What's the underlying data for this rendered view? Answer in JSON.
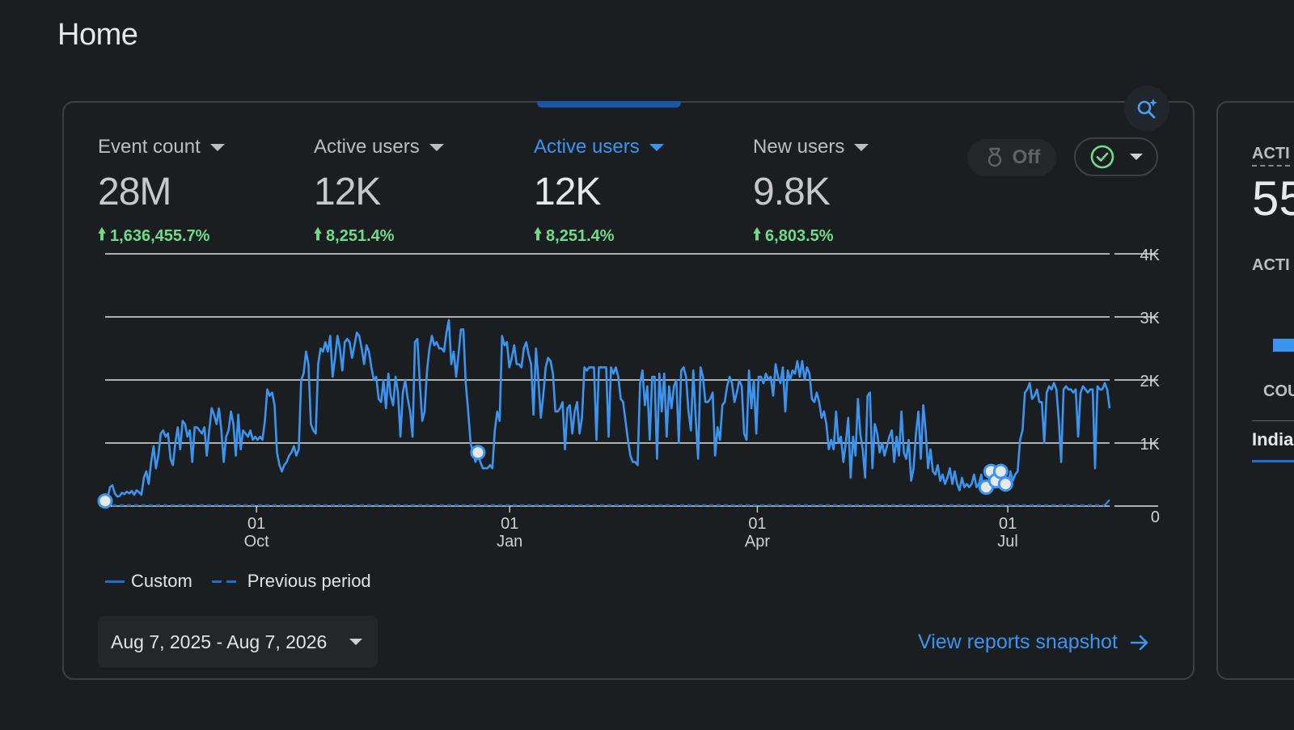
{
  "page": {
    "title": "Home"
  },
  "metrics": [
    {
      "label": "Event count",
      "value": "28M",
      "change": "1,636,455.7%"
    },
    {
      "label": "Active users",
      "value": "12K",
      "change": "8,251.4%"
    },
    {
      "label": "Active users",
      "value": "12K",
      "change": "8,251.4%",
      "selected": true
    },
    {
      "label": "New users",
      "value": "9.8K",
      "change": "6,803.5%"
    }
  ],
  "controls": {
    "off_label": "Off"
  },
  "chart_data": {
    "type": "line",
    "x_tick_labels": [
      {
        "day": "01",
        "month": "Oct"
      },
      {
        "day": "01",
        "month": "Jan"
      },
      {
        "day": "01",
        "month": "Apr"
      },
      {
        "day": "01",
        "month": "Jul"
      }
    ],
    "y_tick_labels": [
      "0",
      "1K",
      "2K",
      "3K",
      "4K"
    ],
    "ylim": [
      0,
      4000
    ],
    "x_range": [
      "2025-08-07",
      "2026-08-07"
    ],
    "legend_position": "bottom-left",
    "grid": true,
    "series": [
      {
        "name": "Custom",
        "style": "solid",
        "color": "#3b95f0",
        "values": [
          80,
          120,
          300,
          330,
          200,
          150,
          160,
          210,
          190,
          230,
          200,
          240,
          180,
          250,
          220,
          180,
          450,
          550,
          350,
          700,
          950,
          600,
          800,
          1150,
          1200,
          1100,
          1150,
          750,
          650,
          1000,
          1250,
          900,
          1350,
          1300,
          1100,
          1200,
          700,
          1250,
          1250,
          1200,
          1150,
          1250,
          800,
          1200,
          1550,
          1450,
          1300,
          1550,
          1200,
          700,
          1100,
          1200,
          1500,
          1300,
          800,
          1450,
          900,
          1200,
          1150,
          1100,
          1200,
          1050,
          1100,
          1050,
          1100,
          1050,
          1350,
          1850,
          1750,
          1800,
          1600,
          850,
          650,
          550,
          650,
          700,
          800,
          850,
          950,
          800,
          900,
          2000,
          2100,
          2450,
          2250,
          1300,
          1200,
          1150,
          2250,
          2500,
          2450,
          2600,
          2450,
          2700,
          2050,
          2350,
          2700,
          2500,
          2150,
          2600,
          2650,
          2600,
          2350,
          2550,
          2750,
          2700,
          2500,
          2250,
          2550,
          2450,
          2200,
          2000,
          2050,
          1700,
          1650,
          2000,
          1550,
          2100,
          1750,
          1600,
          2050,
          1800,
          1100,
          1800,
          2000,
          1700,
          1500,
          1100,
          2600,
          2650,
          1950,
          1350,
          1500,
          2150,
          2500,
          2700,
          2550,
          2600,
          2500,
          2500,
          2450,
          2750,
          2950,
          2250,
          2450,
          2050,
          2400,
          2800,
          2800,
          1950,
          1500,
          1000,
          850,
          700,
          850,
          700,
          600,
          600,
          600,
          650,
          600,
          1200,
          1500,
          1350,
          2700,
          2550,
          2600,
          2200,
          2350,
          2550,
          2250,
          2250,
          2200,
          2500,
          2600,
          2400,
          2250,
          1450,
          2500,
          2000,
          1400,
          1750,
          2200,
          2350,
          2300,
          2100,
          1500,
          1500,
          1550,
          1650,
          900,
          1550,
          1600,
          1150,
          1500,
          1650,
          1150,
          1400,
          2200,
          2150,
          2200,
          2200,
          2200,
          1050,
          2200,
          2200,
          2200,
          2200,
          1100,
          2200,
          2100,
          2200,
          2050,
          1700,
          1650,
          1350,
          1050,
          800,
          700,
          700,
          650,
          1950,
          2150,
          1600,
          1900,
          1050,
          2050,
          2050,
          750,
          2100,
          1500,
          2100,
          1100,
          1900,
          1550,
          1900,
          2000,
          1000,
          2150,
          2200,
          2050,
          1500,
          1200,
          2150,
          1400,
          750,
          2200,
          2050,
          1650,
          1650,
          1700,
          1800,
          800,
          1250,
          1050,
          1600,
          1650,
          1900,
          2050,
          1950,
          1650,
          1800,
          2000,
          1900,
          1150,
          1050,
          2150,
          1550,
          2000,
          1150,
          2050,
          2050,
          1950,
          2100,
          2000,
          2050,
          1750,
          2250,
          2050,
          1950,
          2200,
          1500,
          2150,
          2000,
          2150,
          2100,
          2300,
          2050,
          2300,
          2000,
          2200,
          2100,
          1700,
          1650,
          1800,
          1650,
          1400,
          1500,
          1300,
          900,
          1050,
          900,
          1500,
          1000,
          1100,
          700,
          1000,
          1400,
          450,
          1100,
          800,
          1700,
          1150,
          900,
          450,
          1750,
          1800,
          600,
          1300,
          1150,
          850,
          1000,
          800,
          950,
          1100,
          1200,
          700,
          1100,
          800,
          1500,
          850,
          750,
          1050,
          400,
          600,
          1150,
          1500,
          750,
          1600,
          1200,
          600,
          900,
          550,
          500,
          650,
          400,
          500,
          350,
          450,
          600,
          350,
          550,
          350,
          250,
          450,
          300,
          350,
          300,
          350,
          500,
          300,
          350,
          500,
          250,
          300,
          350,
          550,
          300,
          400,
          300,
          550,
          400,
          350,
          300,
          550,
          400,
          500,
          550,
          1050,
          1200,
          1800,
          1850,
          1950,
          1700,
          1750,
          1850,
          1650,
          1650,
          1000,
          1800,
          1900,
          1850,
          1950,
          1850,
          1350,
          700,
          1850,
          1900,
          1850,
          1850,
          1800,
          1850,
          1100,
          1800,
          1900,
          1850,
          1800,
          1850,
          1850,
          600,
          1900,
          1850,
          1850,
          1950,
          1850,
          1550
        ],
        "annotation_indices": [
          0,
          154,
          364,
          366,
          368,
          370,
          372
        ]
      },
      {
        "name": "Previous period",
        "style": "dashed",
        "color": "#1f6fd1",
        "values_note": "",
        "baseline_value": 0,
        "end_value": 100
      }
    ]
  },
  "footer": {
    "date_range": "Aug 7, 2025 - Aug 7, 2026",
    "snapshot_link": "View reports snapshot"
  },
  "right_card": {
    "label1": "ACTI",
    "value": "55",
    "label2": "ACTI",
    "label3": "COU",
    "row_label": "India"
  }
}
